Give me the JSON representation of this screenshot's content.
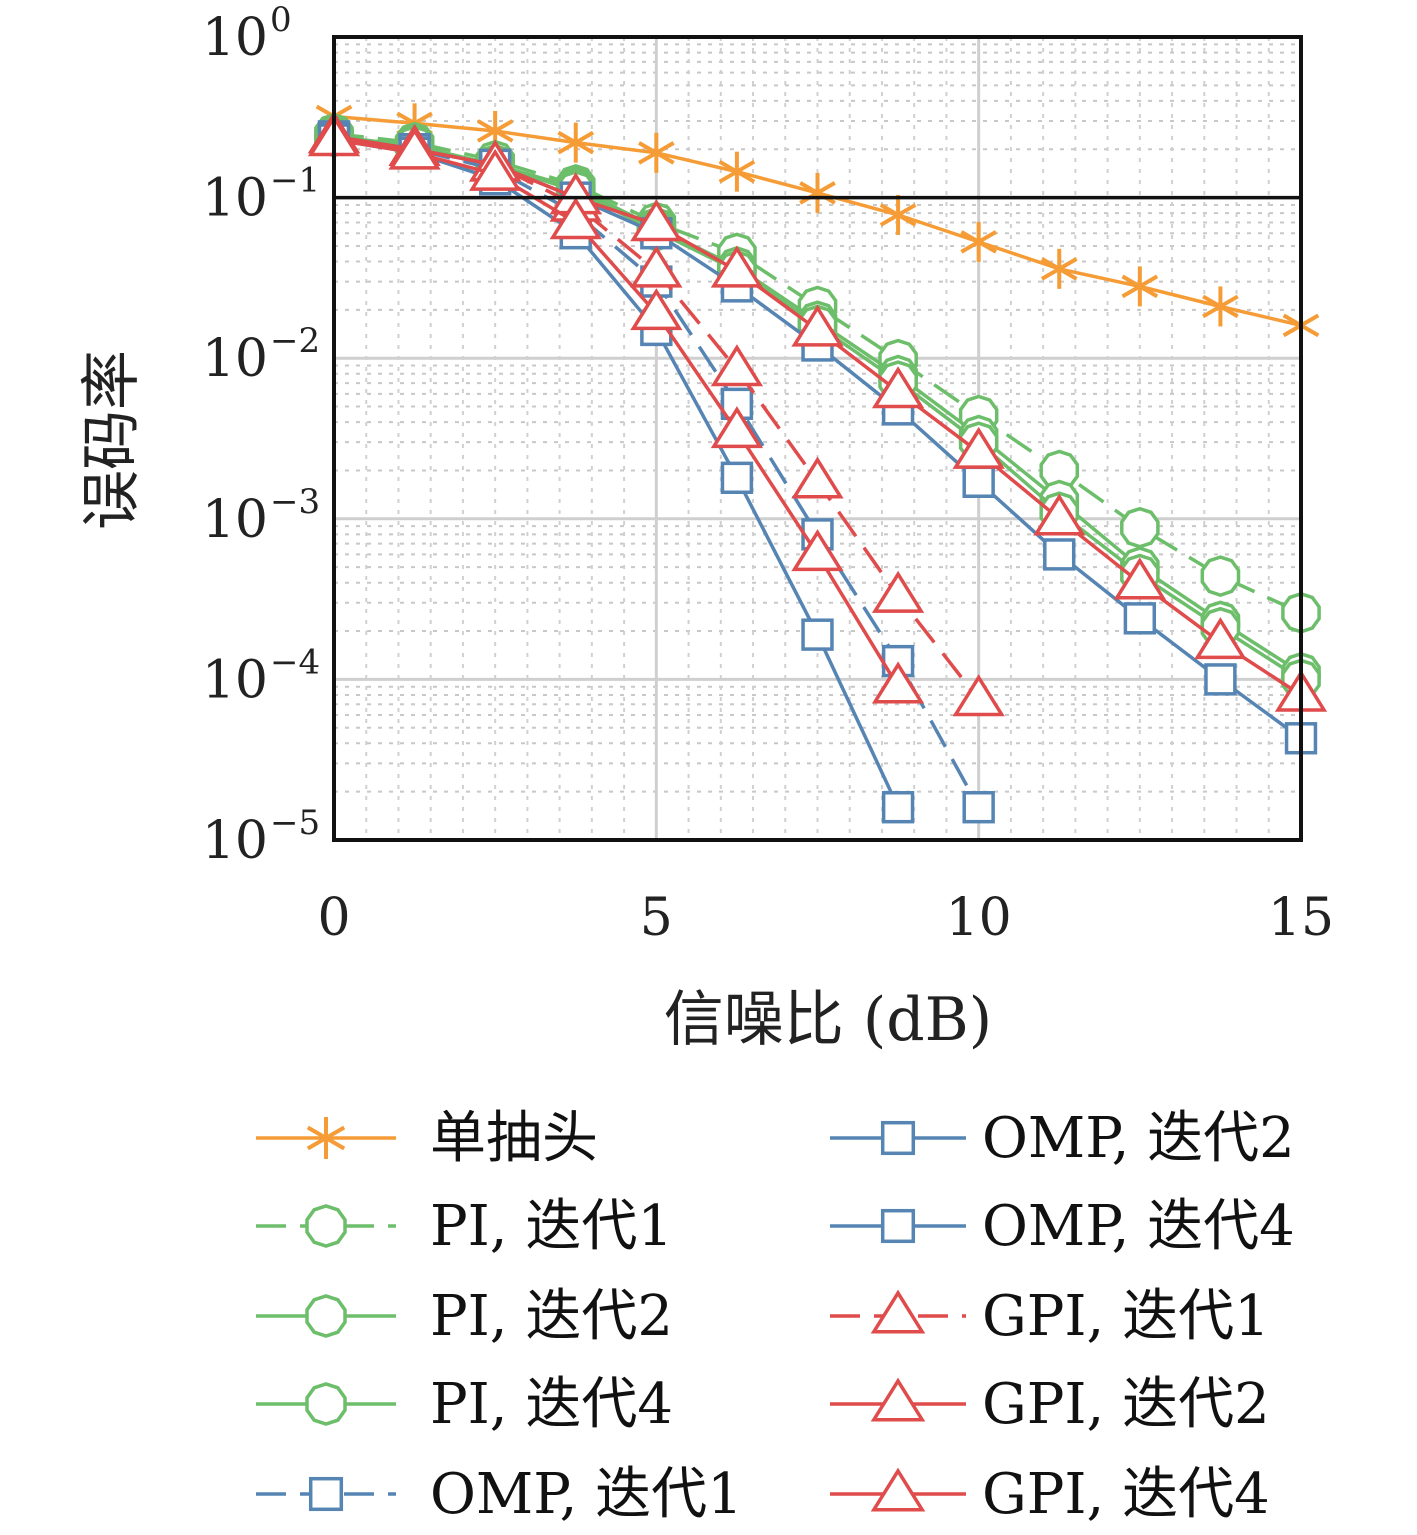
{
  "chart_data": {
    "type": "line",
    "title": "",
    "xlabel": "信噪比 (dB)",
    "ylabel": "误码率",
    "x_scale": "linear",
    "y_scale": "log",
    "xlim": [
      0,
      15
    ],
    "ylim": [
      1e-05,
      1
    ],
    "x_ticks": [
      "0",
      "5",
      "10",
      "15"
    ],
    "y_ticks": [
      {
        "base": "10",
        "exp": "0"
      },
      {
        "base": "10",
        "exp": "−1"
      },
      {
        "base": "10",
        "exp": "−2"
      },
      {
        "base": "10",
        "exp": "−3"
      },
      {
        "base": "10",
        "exp": "−4"
      },
      {
        "base": "10",
        "exp": "−5"
      }
    ],
    "grid": true,
    "legend_position": "below",
    "series": [
      {
        "name": "单抽头",
        "color": "#f59c36",
        "marker": "asterisk",
        "dash": "solid",
        "x": [
          0,
          1.25,
          2.5,
          3.75,
          5,
          6.25,
          7.5,
          8.75,
          10,
          11.25,
          12.5,
          13.75,
          15
        ],
        "y": [
          0.32,
          0.29,
          0.26,
          0.22,
          0.19,
          0.145,
          0.107,
          0.078,
          0.053,
          0.036,
          0.028,
          0.021,
          0.016
        ]
      },
      {
        "name": "PI, 迭代1",
        "color": "#6dbe6a",
        "marker": "circle",
        "dash": "dashed",
        "x": [
          0,
          1.25,
          2.5,
          3.75,
          5,
          6.25,
          7.5,
          8.75,
          10,
          11.25,
          12.5,
          13.75,
          15
        ],
        "y": [
          0.25,
          0.22,
          0.17,
          0.12,
          0.07,
          0.045,
          0.021,
          0.0098,
          0.0044,
          0.002,
          0.00088,
          0.00044,
          0.00026
        ]
      },
      {
        "name": "PI, 迭代2",
        "color": "#6dbe6a",
        "marker": "circle",
        "dash": "solid",
        "x": [
          0,
          1.25,
          2.5,
          3.75,
          5,
          6.25,
          7.5,
          8.75,
          10,
          11.25,
          12.5,
          13.75,
          15
        ],
        "y": [
          0.24,
          0.21,
          0.16,
          0.115,
          0.065,
          0.037,
          0.017,
          0.0078,
          0.0033,
          0.0013,
          0.0005,
          0.00023,
          0.00011
        ]
      },
      {
        "name": "PI, 迭代4",
        "color": "#6dbe6a",
        "marker": "circle",
        "dash": "solid",
        "x": [
          0,
          1.25,
          2.5,
          3.75,
          5,
          6.25,
          7.5,
          8.75,
          10,
          11.25,
          12.5,
          13.75,
          15
        ],
        "y": [
          0.24,
          0.21,
          0.16,
          0.11,
          0.062,
          0.035,
          0.016,
          0.0072,
          0.003,
          0.0011,
          0.00045,
          0.00021,
          0.0001
        ]
      },
      {
        "name": "OMP, 迭代1",
        "color": "#5685b4",
        "marker": "square",
        "dash": "dashed",
        "x": [
          0,
          1.25,
          2.5,
          3.75,
          5,
          6.25,
          7.5,
          8.75,
          10
        ],
        "y": [
          0.24,
          0.2,
          0.15,
          0.08,
          0.03,
          0.0052,
          0.0008,
          0.00013,
          1.6e-05
        ]
      },
      {
        "name": "OMP, 迭代2",
        "color": "#5685b4",
        "marker": "square",
        "dash": "solid",
        "x": [
          0,
          1.25,
          2.5,
          3.75,
          5,
          6.25,
          7.5,
          8.75,
          10,
          11.25,
          12.5,
          13.75,
          15
        ],
        "y": [
          0.24,
          0.2,
          0.16,
          0.1,
          0.06,
          0.028,
          0.012,
          0.0048,
          0.0017,
          0.0006,
          0.00024,
          0.0001,
          4.3e-05
        ]
      },
      {
        "name": "OMP, 迭代4",
        "color": "#5685b4",
        "marker": "square",
        "dash": "solid",
        "x": [
          0,
          1.25,
          2.5,
          3.75,
          5,
          6.25,
          7.5,
          8.75
        ],
        "y": [
          0.23,
          0.19,
          0.13,
          0.06,
          0.015,
          0.0018,
          0.00019,
          1.6e-05
        ]
      },
      {
        "name": "GPI, 迭代1",
        "color": "#e04b4b",
        "marker": "triangle",
        "dash": "dashed",
        "x": [
          0,
          1.25,
          2.5,
          3.75,
          5,
          6.25,
          7.5,
          8.75,
          10
        ],
        "y": [
          0.24,
          0.2,
          0.16,
          0.09,
          0.035,
          0.0085,
          0.0017,
          0.00033,
          7.5e-05
        ]
      },
      {
        "name": "GPI, 迭代2",
        "color": "#e04b4b",
        "marker": "triangle",
        "dash": "solid",
        "x": [
          0,
          1.25,
          2.5,
          3.75,
          5,
          6.25,
          7.5,
          8.75,
          10,
          11.25,
          12.5,
          13.75,
          15
        ],
        "y": [
          0.24,
          0.2,
          0.16,
          0.1,
          0.068,
          0.035,
          0.015,
          0.0062,
          0.0026,
          0.001,
          0.0004,
          0.00017,
          8e-05
        ]
      },
      {
        "name": "GPI, 迭代4",
        "color": "#e04b4b",
        "marker": "triangle",
        "dash": "solid",
        "x": [
          0,
          1.25,
          2.5,
          3.75,
          5,
          6.25,
          7.5,
          8.75
        ],
        "y": [
          0.23,
          0.19,
          0.14,
          0.07,
          0.019,
          0.0035,
          0.0006,
          9e-05
        ]
      }
    ]
  }
}
